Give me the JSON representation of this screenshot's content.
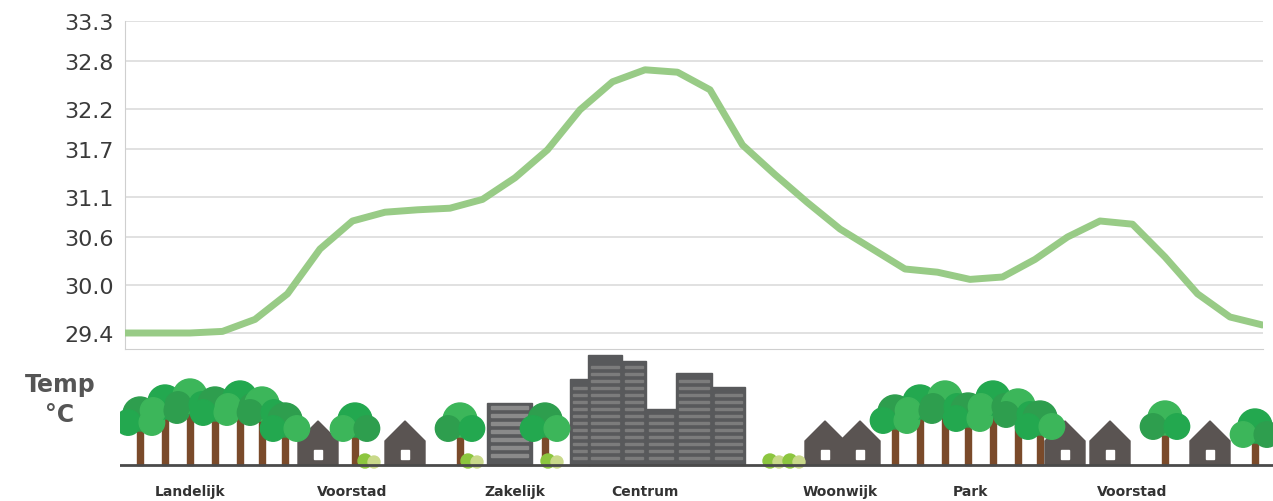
{
  "chart_data": {
    "type": "line",
    "categories": [
      null,
      null,
      "Landelijk",
      null,
      null,
      null,
      null,
      "Voorstad",
      null,
      null,
      null,
      null,
      "Zakelijk",
      null,
      null,
      null,
      "Centrum",
      null,
      null,
      null,
      null,
      null,
      "Woonwijk",
      null,
      null,
      null,
      "Park",
      null,
      null,
      null,
      null,
      "Voorstad",
      null,
      null,
      null,
      null
    ],
    "values": [
      29.4,
      29.4,
      29.4,
      29.42,
      29.57,
      29.89,
      30.45,
      30.8,
      30.91,
      30.94,
      30.96,
      31.07,
      31.34,
      31.69,
      32.19,
      32.54,
      32.69,
      32.66,
      32.44,
      31.75,
      31.38,
      31.03,
      30.7,
      30.45,
      30.2,
      30.16,
      30.07,
      30.1,
      30.32,
      30.6,
      30.8,
      30.76,
      30.35,
      29.89,
      29.6,
      29.5
    ],
    "color": "#98cb86",
    "y_label": "Temp\n°C",
    "ylim": [
      29.2,
      33.3
    ],
    "yticks": [
      29.4,
      {
        "value": 30,
        "label": "30.0"
      },
      30.6,
      31.1,
      31.7,
      32.2,
      32.8,
      33.3
    ],
    "grid": true
  }
}
